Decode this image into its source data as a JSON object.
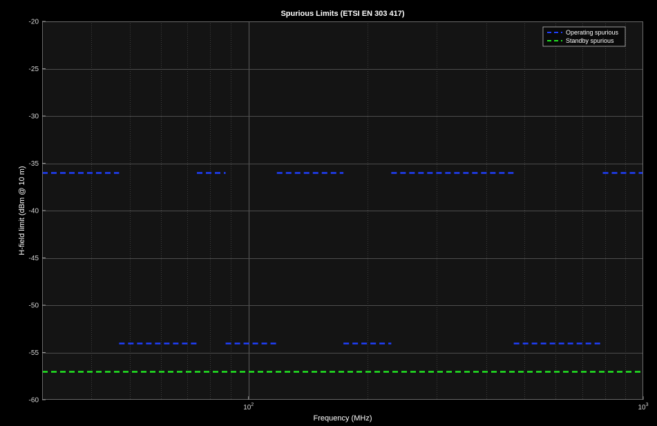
{
  "chart_data": {
    "type": "line",
    "title": "Spurious Limits (ETSI EN 303 417)",
    "xlabel": "Frequency (MHz)",
    "ylabel": "H-field limit (dBm @ 10 m)",
    "x_scale": "log",
    "xlim": [
      30,
      1000
    ],
    "ylim": [
      -60,
      -20
    ],
    "yticks": [
      -60,
      -55,
      -50,
      -45,
      -40,
      -35,
      -30,
      -25,
      -20
    ],
    "ytick_labels": [
      "-60",
      "-55",
      "-50",
      "-45",
      "-40",
      "-35",
      "-30",
      "-25",
      "-20"
    ],
    "xtick_labels": [
      {
        "value": 100,
        "base": "10",
        "exp": "2"
      },
      {
        "value": 1000,
        "base": "10",
        "exp": "3"
      }
    ],
    "grid": true,
    "minor_grid": true,
    "legend_position": "top-right",
    "series": [
      {
        "name": "Operating spurious",
        "color": "#1f3fff",
        "style": "dashed",
        "segments": [
          {
            "x": [
              30,
              47
            ],
            "y": -36
          },
          {
            "x": [
              47,
              74
            ],
            "y": -54
          },
          {
            "x": [
              74,
              87.5
            ],
            "y": -36
          },
          {
            "x": [
              87.5,
              118
            ],
            "y": -54
          },
          {
            "x": [
              118,
              174
            ],
            "y": -36
          },
          {
            "x": [
              174,
              230
            ],
            "y": -54
          },
          {
            "x": [
              230,
              470
            ],
            "y": -36
          },
          {
            "x": [
              470,
              790
            ],
            "y": -54
          },
          {
            "x": [
              790,
              1000
            ],
            "y": -36
          }
        ]
      },
      {
        "name": "Standby spurious",
        "color": "#22e622",
        "style": "dashed",
        "segments": [
          {
            "x": [
              30,
              1000
            ],
            "y": -57
          }
        ]
      }
    ]
  }
}
